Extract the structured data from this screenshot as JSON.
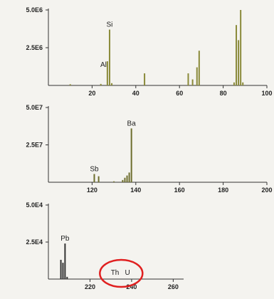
{
  "chart_data": [
    {
      "type": "bar",
      "xlim": [
        0,
        100
      ],
      "ylim": [
        0,
        5000000
      ],
      "y_ticks": [
        {
          "value": 2500000,
          "label": "2.5E6"
        },
        {
          "value": 5000000,
          "label": "5.0E6"
        }
      ],
      "x_ticks": [
        {
          "value": 20,
          "label": "20"
        },
        {
          "value": 40,
          "label": "40"
        },
        {
          "value": 60,
          "label": "60"
        },
        {
          "value": 80,
          "label": "80"
        },
        {
          "value": 100,
          "label": "100"
        }
      ],
      "color": "#8a8a3a",
      "peaks": [
        {
          "x": 10,
          "y": 80000
        },
        {
          "x": 24,
          "y": 100000
        },
        {
          "x": 27,
          "y": 1600000
        },
        {
          "x": 28,
          "y": 3700000
        },
        {
          "x": 29,
          "y": 150000
        },
        {
          "x": 44,
          "y": 800000
        },
        {
          "x": 64,
          "y": 800000
        },
        {
          "x": 66,
          "y": 400000
        },
        {
          "x": 68,
          "y": 1200000
        },
        {
          "x": 69,
          "y": 2300000
        },
        {
          "x": 85,
          "y": 200000
        },
        {
          "x": 86,
          "y": 4000000
        },
        {
          "x": 87,
          "y": 3000000
        },
        {
          "x": 88,
          "y": 5000000
        },
        {
          "x": 89,
          "y": 200000
        }
      ],
      "annotations": [
        {
          "text": "Si",
          "x": 28,
          "y": 3700000
        },
        {
          "text": "Al",
          "x": 27,
          "y": 1600000
        }
      ]
    },
    {
      "type": "bar",
      "xlim": [
        100,
        200
      ],
      "ylim": [
        0,
        50000000
      ],
      "y_ticks": [
        {
          "value": 25000000,
          "label": "2.5E7"
        },
        {
          "value": 50000000,
          "label": "5.0E7"
        }
      ],
      "x_ticks": [
        {
          "value": 120,
          "label": "120"
        },
        {
          "value": 140,
          "label": "140"
        },
        {
          "value": 160,
          "label": "160"
        },
        {
          "value": 180,
          "label": "180"
        },
        {
          "value": 200,
          "label": "200"
        }
      ],
      "color": "#6e6e2e",
      "peaks": [
        {
          "x": 121,
          "y": 5500000
        },
        {
          "x": 123,
          "y": 4000000
        },
        {
          "x": 130,
          "y": 600000
        },
        {
          "x": 134,
          "y": 1500000
        },
        {
          "x": 135,
          "y": 3000000
        },
        {
          "x": 136,
          "y": 4500000
        },
        {
          "x": 137,
          "y": 6500000
        },
        {
          "x": 138,
          "y": 36000000
        }
      ],
      "annotations": [
        {
          "text": "Sb",
          "x": 121,
          "y": 5500000
        },
        {
          "text": "Ba",
          "x": 138,
          "y": 36000000
        }
      ]
    },
    {
      "type": "bar",
      "xlim": [
        200,
        265
      ],
      "ylim": [
        0,
        50000
      ],
      "y_ticks": [
        {
          "value": 25000,
          "label": "2.5E4"
        },
        {
          "value": 50000,
          "label": "5.0E4"
        }
      ],
      "x_ticks": [
        {
          "value": 220,
          "label": "220"
        },
        {
          "value": 240,
          "label": "240"
        },
        {
          "value": 260,
          "label": "260"
        }
      ],
      "color": "#333333",
      "peaks": [
        {
          "x": 206,
          "y": 13000
        },
        {
          "x": 207,
          "y": 11000
        },
        {
          "x": 208,
          "y": 24000
        },
        {
          "x": 209,
          "y": 1500
        }
      ],
      "annotations": [
        {
          "text": "Pb",
          "x": 208,
          "y": 24000
        },
        {
          "text": "Th",
          "x": 232,
          "y": 0
        },
        {
          "text": "U",
          "x": 238,
          "y": 0
        }
      ],
      "highlight": {
        "shape": "circle",
        "color": "#e02020",
        "x_center": 235,
        "around": [
          "Th",
          "U"
        ]
      }
    }
  ]
}
